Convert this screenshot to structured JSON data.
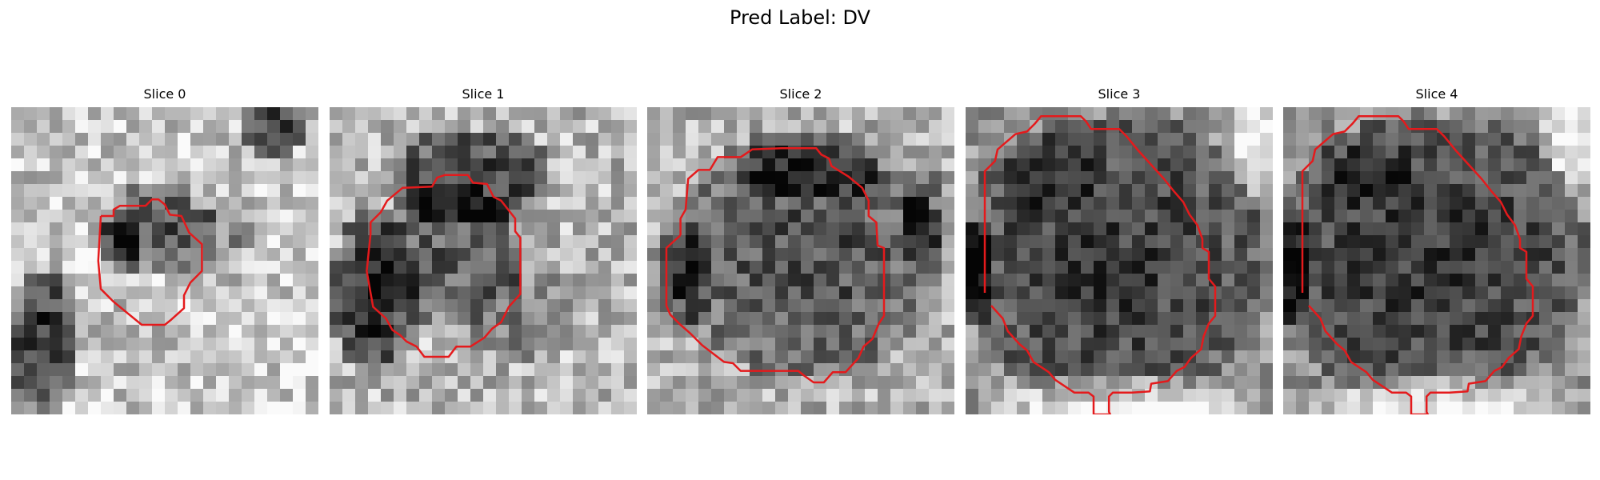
{
  "figure": {
    "title": "Pred Label: DV"
  },
  "panels": [
    {
      "title": "Slice 0"
    },
    {
      "title": "Slice 1"
    },
    {
      "title": "Slice 2"
    },
    {
      "title": "Slice 3"
    },
    {
      "title": "Slice 4"
    }
  ],
  "colors": {
    "contour": "#e41a1c",
    "background": "#ffffff"
  }
}
